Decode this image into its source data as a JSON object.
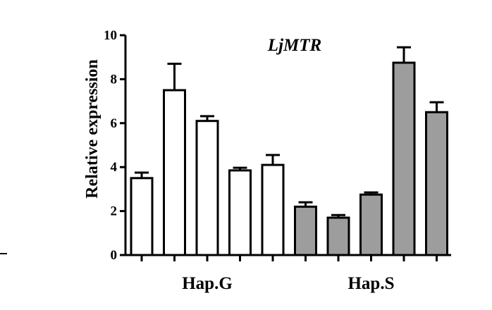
{
  "chart_data": {
    "type": "bar",
    "title": "LjMTR",
    "xlabel": "",
    "ylabel": "Relative expression",
    "ylim": [
      0,
      10
    ],
    "yticks": [
      0,
      2,
      4,
      6,
      8,
      10
    ],
    "grid": false,
    "groups": [
      {
        "label": "Hap.G",
        "color": "#ffffff",
        "values": [
          3.5,
          7.5,
          6.1,
          3.85,
          4.1
        ],
        "errors": [
          0.25,
          1.2,
          0.22,
          0.12,
          0.45
        ]
      },
      {
        "label": "Hap.S",
        "color": "#9d9d9d",
        "values": [
          2.2,
          1.7,
          2.75,
          8.75,
          6.5
        ],
        "errors": [
          0.2,
          0.12,
          0.1,
          0.7,
          0.45
        ]
      }
    ]
  }
}
